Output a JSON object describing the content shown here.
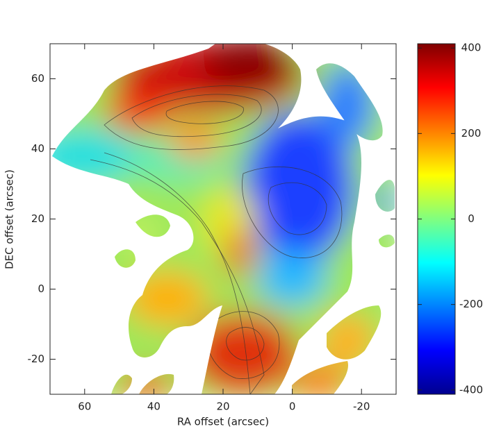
{
  "chart_data": {
    "type": "image",
    "xlabel": "RA offset (arcsec)",
    "ylabel": "DEC offset (arcsec)",
    "xlim": [
      70,
      -30
    ],
    "xticks": [
      60,
      40,
      20,
      0,
      -20
    ],
    "ylim": [
      -30,
      70
    ],
    "yticks": [
      -20,
      0,
      20,
      40,
      60
    ],
    "colorbar": {
      "lim": [
        -410,
        410
      ],
      "ticks": [
        -400,
        -200,
        0,
        200,
        400
      ],
      "colormap": "jet"
    }
  }
}
